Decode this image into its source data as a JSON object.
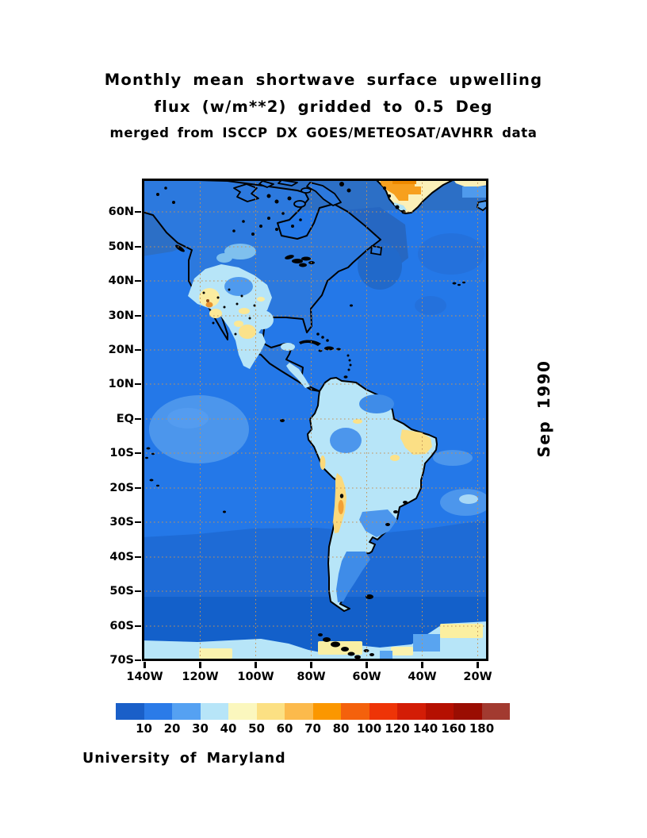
{
  "title": {
    "line1": "Monthly mean shortwave surface upwelling",
    "line2": "flux (w/m**2) gridded to 0.5 Deg",
    "line3": "merged from ISCCP DX GOES/METEOSAT/AVHRR data"
  },
  "side_date_label": "Sep 1990",
  "credit": "University of Maryland",
  "chart_data": {
    "type": "heatmap",
    "title": "Monthly mean shortwave surface upwelling flux (w/m**2) gridded to 0.5 Deg",
    "subtitle": "merged from ISCCP DX GOES/METEOSAT/AVHRR data",
    "date": "Sep 1990",
    "units": "w/m**2",
    "region": "Americas, 140W-20W, 70S-70N",
    "grid": true,
    "legend_position": "bottom",
    "lat_ticks": [
      "60N",
      "50N",
      "40N",
      "30N",
      "20N",
      "10N",
      "EQ",
      "10S",
      "20S",
      "30S",
      "40S",
      "50S",
      "60S",
      "70S"
    ],
    "lon_ticks": [
      "140W",
      "120W",
      "100W",
      "80W",
      "60W",
      "40W",
      "20W"
    ],
    "colorbar": {
      "labels": [
        "10",
        "20",
        "30",
        "40",
        "50",
        "60",
        "70",
        "80",
        "100",
        "120",
        "140",
        "160",
        "180"
      ],
      "levels": [
        10,
        20,
        30,
        40,
        50,
        60,
        70,
        80,
        100,
        120,
        140,
        160,
        180
      ],
      "colors": [
        "#1a5fc8",
        "#2b7be8",
        "#55a1f2",
        "#b7e5f8",
        "#fbf7be",
        "#fce083",
        "#fcba4c",
        "#fb9700",
        "#f4610c",
        "#ee3407",
        "#d31d06",
        "#b51001",
        "#9a0d02",
        "#a23a30"
      ]
    },
    "map_palette": {
      "ocean": "#2478e8",
      "ocean_dark_band": "#1e6bd6",
      "ocean_darker_band": "#1360ca",
      "polar_ice": "#b7e5f8",
      "land_low_flux": "#2c79de",
      "land_bright": "#b7e5f8",
      "land_yellow": "#fce083",
      "ice_orange": "#f7a01e",
      "coastline": "#000000",
      "gridline": "#c49358"
    }
  }
}
